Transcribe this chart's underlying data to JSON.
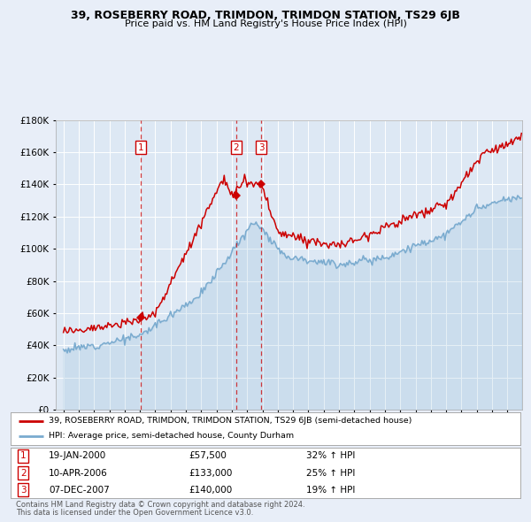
{
  "title": "39, ROSEBERRY ROAD, TRIMDON, TRIMDON STATION, TS29 6JB",
  "subtitle": "Price paid vs. HM Land Registry's House Price Index (HPI)",
  "legend_line1": "39, ROSEBERRY ROAD, TRIMDON, TRIMDON STATION, TS29 6JB (semi-detached house)",
  "legend_line2": "HPI: Average price, semi-detached house, County Durham",
  "footer1": "Contains HM Land Registry data © Crown copyright and database right 2024.",
  "footer2": "This data is licensed under the Open Government Licence v3.0.",
  "transactions": [
    {
      "num": 1,
      "date": "19-JAN-2000",
      "price": "£57,500",
      "hpi": "32% ↑ HPI",
      "year": 2000.05
    },
    {
      "num": 2,
      "date": "10-APR-2006",
      "price": "£133,000",
      "hpi": "25% ↑ HPI",
      "year": 2006.28
    },
    {
      "num": 3,
      "date": "07-DEC-2007",
      "price": "£140,000",
      "hpi": "19% ↑ HPI",
      "year": 2007.92
    }
  ],
  "transaction_values": [
    57500,
    133000,
    140000
  ],
  "red_color": "#cc0000",
  "blue_color": "#7aabcf",
  "background_color": "#e8eef8",
  "plot_bg": "#dde8f4",
  "ylim": [
    0,
    180000
  ],
  "yticks": [
    0,
    20000,
    40000,
    60000,
    80000,
    100000,
    120000,
    140000,
    160000,
    180000
  ]
}
